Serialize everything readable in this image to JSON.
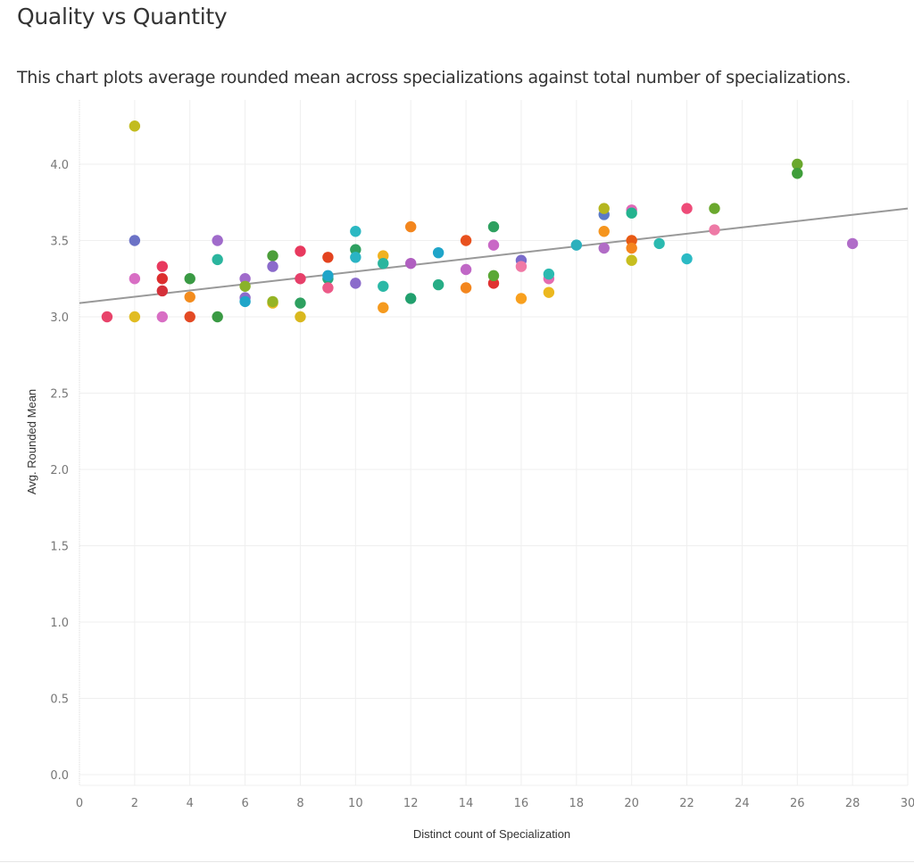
{
  "header": {
    "title": "Quality vs Quantity",
    "subtitle": "This chart plots average rounded mean across specializations against total number of specializations."
  },
  "chart_data": {
    "type": "scatter",
    "title": "Quality vs Quantity",
    "subtitle": "This chart plots average rounded mean across specializations against total number of specializations.",
    "xlabel": "Distinct count of Specialization",
    "ylabel": "Avg. Rounded Mean",
    "xlim": [
      0,
      30
    ],
    "ylim": [
      0,
      4.3
    ],
    "x_ticks": [
      "0",
      "2",
      "4",
      "6",
      "8",
      "10",
      "12",
      "14",
      "16",
      "18",
      "20",
      "22",
      "24",
      "26",
      "28",
      "30"
    ],
    "x_tick_values": [
      0,
      2,
      4,
      6,
      8,
      10,
      12,
      14,
      16,
      18,
      20,
      22,
      24,
      26,
      28,
      30
    ],
    "y_ticks": [
      "0.0",
      "0.5",
      "1.0",
      "1.5",
      "2.0",
      "2.5",
      "3.0",
      "3.5",
      "4.0"
    ],
    "y_tick_values": [
      0,
      0.5,
      1,
      1.5,
      2,
      2.5,
      3,
      3.5,
      4
    ],
    "grid": true,
    "legend": "none",
    "trend_line": {
      "type": "linear",
      "x": [
        0,
        30
      ],
      "y": [
        3.09,
        3.71
      ],
      "color": "#999999"
    },
    "points": [
      {
        "x": 1,
        "y": 3.0,
        "color": "#e8436a"
      },
      {
        "x": 2,
        "y": 4.25,
        "color": "#c2bc1f"
      },
      {
        "x": 2,
        "y": 3.5,
        "color": "#6b72c6"
      },
      {
        "x": 2,
        "y": 3.25,
        "color": "#d86ec4"
      },
      {
        "x": 2,
        "y": 3.0,
        "color": "#e1bc22"
      },
      {
        "x": 3,
        "y": 3.33,
        "color": "#e8395e"
      },
      {
        "x": 3,
        "y": 3.25,
        "color": "#dc2e2e"
      },
      {
        "x": 3,
        "y": 3.17,
        "color": "#d4303a"
      },
      {
        "x": 3,
        "y": 3.0,
        "color": "#d86ec4"
      },
      {
        "x": 4,
        "y": 3.25,
        "color": "#3a9a44"
      },
      {
        "x": 4,
        "y": 3.13,
        "color": "#f38c1e"
      },
      {
        "x": 4,
        "y": 3.0,
        "color": "#e34a24"
      },
      {
        "x": 5,
        "y": 3.5,
        "color": "#a06bcb"
      },
      {
        "x": 5,
        "y": 3.375,
        "color": "#2bb59e"
      },
      {
        "x": 5,
        "y": 3.0,
        "color": "#3a9a44"
      },
      {
        "x": 6,
        "y": 3.25,
        "color": "#a06bcb"
      },
      {
        "x": 6,
        "y": 3.2,
        "color": "#8ab22a"
      },
      {
        "x": 6,
        "y": 3.125,
        "color": "#8b6bcb"
      },
      {
        "x": 6,
        "y": 3.1,
        "color": "#1fa5c9"
      },
      {
        "x": 7,
        "y": 3.4,
        "color": "#4c9e3a"
      },
      {
        "x": 7,
        "y": 3.33,
        "color": "#8b6bcb"
      },
      {
        "x": 7,
        "y": 3.09,
        "color": "#e8b821"
      },
      {
        "x": 7,
        "y": 3.1,
        "color": "#95b424"
      },
      {
        "x": 8,
        "y": 3.43,
        "color": "#e8395e"
      },
      {
        "x": 8,
        "y": 3.25,
        "color": "#e6406a"
      },
      {
        "x": 8,
        "y": 3.09,
        "color": "#2ea060"
      },
      {
        "x": 8,
        "y": 3.0,
        "color": "#d9b81e"
      },
      {
        "x": 9,
        "y": 3.39,
        "color": "#e3431f"
      },
      {
        "x": 9,
        "y": 3.25,
        "color": "#2aa87a"
      },
      {
        "x": 9,
        "y": 3.27,
        "color": "#1fa5c9"
      },
      {
        "x": 9,
        "y": 3.19,
        "color": "#ec5a88"
      },
      {
        "x": 10,
        "y": 3.56,
        "color": "#2bb8c2"
      },
      {
        "x": 10,
        "y": 3.44,
        "color": "#2ea060"
      },
      {
        "x": 10,
        "y": 3.39,
        "color": "#2ab4c4"
      },
      {
        "x": 10,
        "y": 3.22,
        "color": "#8b6bcb"
      },
      {
        "x": 11,
        "y": 3.4,
        "color": "#f0b21f"
      },
      {
        "x": 11,
        "y": 3.35,
        "color": "#2bb59e"
      },
      {
        "x": 11,
        "y": 3.2,
        "color": "#2bb8a6"
      },
      {
        "x": 11,
        "y": 3.06,
        "color": "#f59a1e"
      },
      {
        "x": 12,
        "y": 3.59,
        "color": "#f3861e"
      },
      {
        "x": 12,
        "y": 3.35,
        "color": "#b05fc0"
      },
      {
        "x": 12,
        "y": 3.12,
        "color": "#22a06e"
      },
      {
        "x": 13,
        "y": 3.42,
        "color": "#1fa5c9"
      },
      {
        "x": 13,
        "y": 3.21,
        "color": "#27ad86"
      },
      {
        "x": 14,
        "y": 3.5,
        "color": "#e8511e"
      },
      {
        "x": 14,
        "y": 3.31,
        "color": "#c068c6"
      },
      {
        "x": 14,
        "y": 3.19,
        "color": "#f3861e"
      },
      {
        "x": 15,
        "y": 3.59,
        "color": "#2ea060"
      },
      {
        "x": 15,
        "y": 3.47,
        "color": "#c968c6"
      },
      {
        "x": 15,
        "y": 3.22,
        "color": "#e03131"
      },
      {
        "x": 15,
        "y": 3.27,
        "color": "#5aa835"
      },
      {
        "x": 16,
        "y": 3.37,
        "color": "#7a6bcb"
      },
      {
        "x": 16,
        "y": 3.33,
        "color": "#f07aa6"
      },
      {
        "x": 16,
        "y": 3.12,
        "color": "#f8a01e"
      },
      {
        "x": 17,
        "y": 3.25,
        "color": "#e46cb0"
      },
      {
        "x": 17,
        "y": 3.28,
        "color": "#2bbab0"
      },
      {
        "x": 17,
        "y": 3.16,
        "color": "#ecb81e"
      },
      {
        "x": 18,
        "y": 3.47,
        "color": "#2bb0bd"
      },
      {
        "x": 19,
        "y": 3.67,
        "color": "#5b7ac6"
      },
      {
        "x": 19,
        "y": 3.71,
        "color": "#b5b61f"
      },
      {
        "x": 19,
        "y": 3.56,
        "color": "#f5951e"
      },
      {
        "x": 19,
        "y": 3.45,
        "color": "#b16cc6"
      },
      {
        "x": 20,
        "y": 3.7,
        "color": "#e069b7"
      },
      {
        "x": 20,
        "y": 3.68,
        "color": "#24b38f"
      },
      {
        "x": 20,
        "y": 3.5,
        "color": "#e85a14"
      },
      {
        "x": 20,
        "y": 3.45,
        "color": "#f5851e"
      },
      {
        "x": 20,
        "y": 3.37,
        "color": "#c7be1f"
      },
      {
        "x": 21,
        "y": 3.48,
        "color": "#2bbab0"
      },
      {
        "x": 22,
        "y": 3.71,
        "color": "#ee4b78"
      },
      {
        "x": 22,
        "y": 3.38,
        "color": "#2bbac4"
      },
      {
        "x": 23,
        "y": 3.71,
        "color": "#6aa82d"
      },
      {
        "x": 23,
        "y": 3.57,
        "color": "#ee7aa6"
      },
      {
        "x": 26,
        "y": 4.0,
        "color": "#6aa82d"
      },
      {
        "x": 26,
        "y": 3.94,
        "color": "#3f9e3a"
      },
      {
        "x": 28,
        "y": 3.48,
        "color": "#b06cc8"
      }
    ]
  }
}
